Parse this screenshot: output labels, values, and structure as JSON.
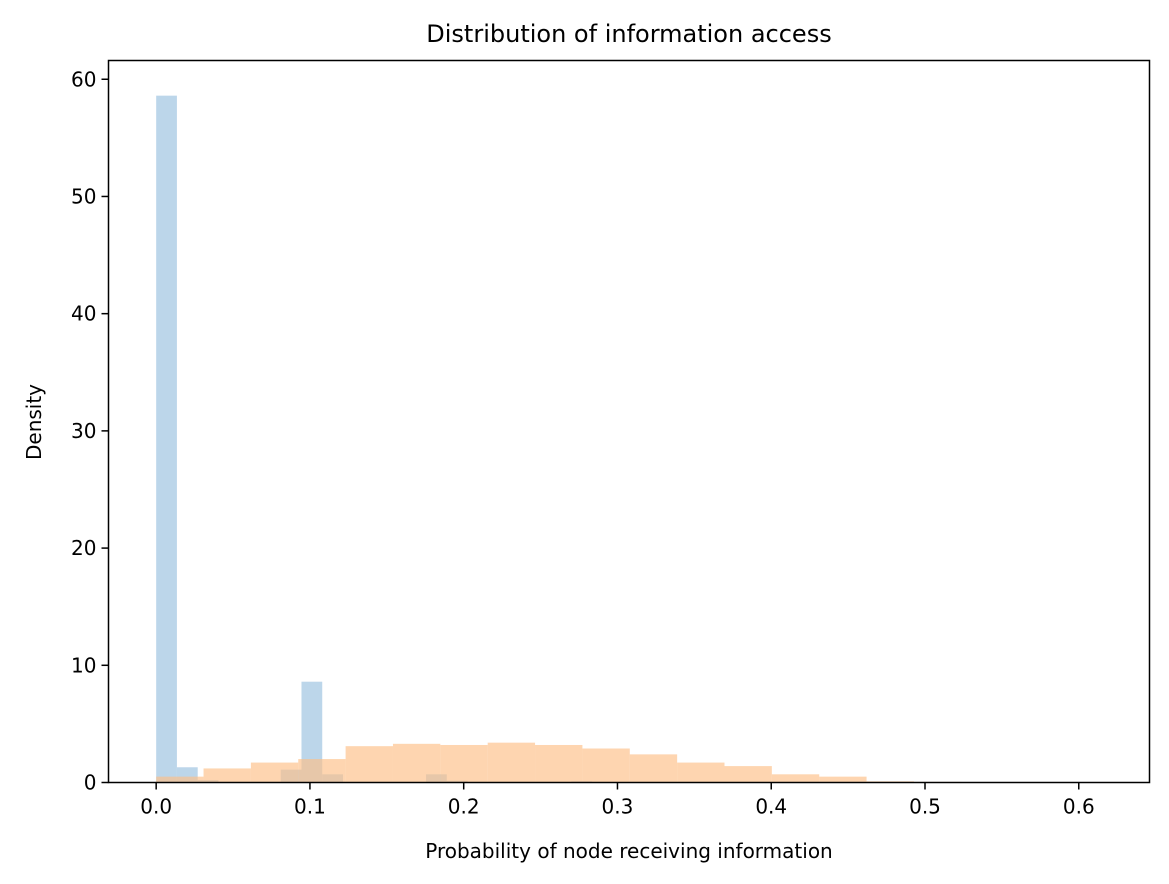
{
  "chart_data": {
    "type": "histogram",
    "title": "Distribution of information access",
    "xlabel": "Probability of node receiving information",
    "ylabel": "Density",
    "xlim": [
      -0.031,
      0.646
    ],
    "ylim": [
      0,
      61.6
    ],
    "xticks": [
      0.0,
      0.1,
      0.2,
      0.3,
      0.4,
      0.5,
      0.6
    ],
    "yticks": [
      0,
      10,
      20,
      30,
      40,
      50,
      60
    ],
    "grid": false,
    "legend": "none",
    "series": [
      {
        "color": "#a6c8e3",
        "opacity": 0.75,
        "bins": [
          {
            "x0": 0.0,
            "x1": 0.0135,
            "value": 58.6
          },
          {
            "x0": 0.0135,
            "x1": 0.027,
            "value": 1.3
          },
          {
            "x0": 0.027,
            "x1": 0.0405,
            "value": 0.2
          },
          {
            "x0": 0.081,
            "x1": 0.0945,
            "value": 1.1
          },
          {
            "x0": 0.0945,
            "x1": 0.108,
            "value": 8.6
          },
          {
            "x0": 0.108,
            "x1": 0.1215,
            "value": 0.7
          },
          {
            "x0": 0.1755,
            "x1": 0.189,
            "value": 0.7
          },
          {
            "x0": 0.189,
            "x1": 0.2025,
            "value": 0.15
          },
          {
            "x0": 0.27,
            "x1": 0.2835,
            "value": 0.1
          }
        ]
      },
      {
        "color": "#fdbf86",
        "opacity": 0.65,
        "bins": [
          {
            "x0": 0.0,
            "x1": 0.0308,
            "value": 0.5
          },
          {
            "x0": 0.0308,
            "x1": 0.0616,
            "value": 1.2
          },
          {
            "x0": 0.0616,
            "x1": 0.0924,
            "value": 1.7
          },
          {
            "x0": 0.0924,
            "x1": 0.1232,
            "value": 2.0
          },
          {
            "x0": 0.1232,
            "x1": 0.154,
            "value": 3.1
          },
          {
            "x0": 0.154,
            "x1": 0.1848,
            "value": 3.3
          },
          {
            "x0": 0.1848,
            "x1": 0.2156,
            "value": 3.2
          },
          {
            "x0": 0.2156,
            "x1": 0.2464,
            "value": 3.4
          },
          {
            "x0": 0.2464,
            "x1": 0.2772,
            "value": 3.2
          },
          {
            "x0": 0.2772,
            "x1": 0.308,
            "value": 2.9
          },
          {
            "x0": 0.308,
            "x1": 0.3388,
            "value": 2.4
          },
          {
            "x0": 0.3388,
            "x1": 0.3696,
            "value": 1.7
          },
          {
            "x0": 0.3696,
            "x1": 0.4004,
            "value": 1.4
          },
          {
            "x0": 0.4004,
            "x1": 0.4312,
            "value": 0.7
          },
          {
            "x0": 0.4312,
            "x1": 0.462,
            "value": 0.5
          },
          {
            "x0": 0.462,
            "x1": 0.4928,
            "value": 0.1
          },
          {
            "x0": 0.4928,
            "x1": 0.5236,
            "value": 0.05
          }
        ]
      }
    ]
  }
}
